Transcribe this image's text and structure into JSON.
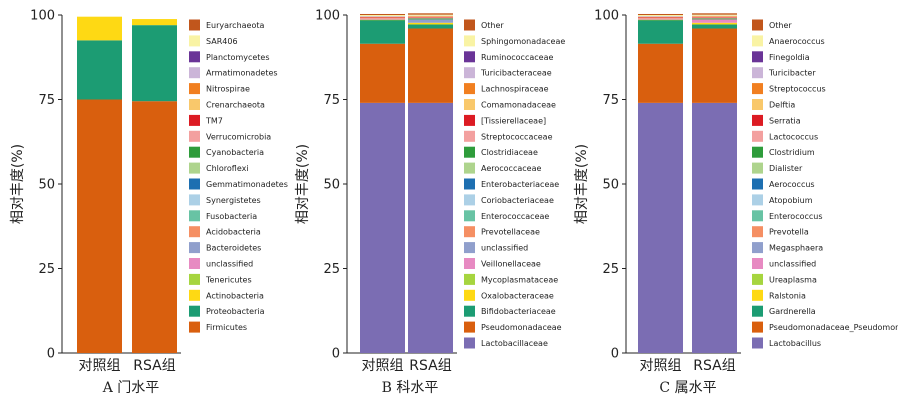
{
  "chart_data": [
    {
      "type": "bar",
      "stacked": true,
      "caption": "A 门水平",
      "ylabel": "相对丰度(%)",
      "ylim": [
        0,
        100
      ],
      "yticks": [
        0,
        25,
        50,
        75,
        100
      ],
      "categories": [
        "对照组",
        "RSA组"
      ],
      "legend_position": "right",
      "series": [
        {
          "name": "Euryarchaeota",
          "color": "#c1561c",
          "values": [
            0,
            0
          ]
        },
        {
          "name": "SAR406",
          "color": "#f9f3a4",
          "values": [
            0,
            0
          ]
        },
        {
          "name": "Planctomycetes",
          "color": "#6a3497",
          "values": [
            0,
            0
          ]
        },
        {
          "name": "Armatimonadetes",
          "color": "#cbb5d8",
          "values": [
            0,
            0
          ]
        },
        {
          "name": "Nitrospirae",
          "color": "#f17f20",
          "values": [
            0,
            0
          ]
        },
        {
          "name": "Crenarchaeota",
          "color": "#f9c86b",
          "values": [
            0,
            0
          ]
        },
        {
          "name": "TM7",
          "color": "#dc1b23",
          "values": [
            0,
            0
          ]
        },
        {
          "name": "Verrucomicrobia",
          "color": "#f3a09f",
          "values": [
            0,
            0
          ]
        },
        {
          "name": "Cyanobacteria",
          "color": "#2e9c3b",
          "values": [
            0,
            0
          ]
        },
        {
          "name": "Chloroflexi",
          "color": "#aed48d",
          "values": [
            0,
            0
          ]
        },
        {
          "name": "Gemmatimonadetes",
          "color": "#1d6fb1",
          "values": [
            0,
            0
          ]
        },
        {
          "name": "Synergistetes",
          "color": "#acd0e6",
          "values": [
            0,
            0
          ]
        },
        {
          "name": "Fusobacteria",
          "color": "#68c3a4",
          "values": [
            0,
            0
          ]
        },
        {
          "name": "Acidobacteria",
          "color": "#f58f63",
          "values": [
            0,
            0
          ]
        },
        {
          "name": "Bacteroidetes",
          "color": "#909fcc",
          "values": [
            0,
            0
          ]
        },
        {
          "name": "unclassified",
          "color": "#e78ac2",
          "values": [
            0,
            0
          ]
        },
        {
          "name": "Tenericutes",
          "color": "#a6d53f",
          "values": [
            0,
            0
          ]
        },
        {
          "name": "Actinobacteria",
          "color": "#fed914",
          "values": [
            7.0,
            1.8
          ]
        },
        {
          "name": "Proteobacteria",
          "color": "#1c9c73",
          "values": [
            17.5,
            22.5
          ]
        },
        {
          "name": "Firmicutes",
          "color": "#d95f0e",
          "values": [
            75.0,
            74.5
          ]
        }
      ]
    },
    {
      "type": "bar",
      "stacked": true,
      "caption": "B 科水平",
      "ylabel": "相对丰度(%)",
      "ylim": [
        0,
        100
      ],
      "yticks": [
        0,
        25,
        50,
        75,
        100
      ],
      "categories": [
        "对照组",
        "RSA组"
      ],
      "legend_position": "right",
      "series": [
        {
          "name": "Other",
          "color": "#c1561c",
          "values": [
            0.3,
            0.4
          ]
        },
        {
          "name": "Sphingomonadaceae",
          "color": "#f9f3a4",
          "values": [
            0.3,
            0.3
          ]
        },
        {
          "name": "Ruminococcaceae",
          "color": "#6a3497",
          "values": [
            0,
            0
          ]
        },
        {
          "name": "Turicibacteraceae",
          "color": "#cbb5d8",
          "values": [
            0.2,
            0.1
          ]
        },
        {
          "name": "Lachnospiraceae",
          "color": "#f17f20",
          "values": [
            0,
            0
          ]
        },
        {
          "name": "Comamonadaceae",
          "color": "#f9c86b",
          "values": [
            0.2,
            0.2
          ]
        },
        {
          "name": "[Tissierellaceae]",
          "color": "#dc1b23",
          "values": [
            0.2,
            0.2
          ]
        },
        {
          "name": "Streptococcaceae",
          "color": "#f3a09f",
          "values": [
            0.5,
            0.3
          ]
        },
        {
          "name": "Clostridiaceae",
          "color": "#2e9c3b",
          "values": [
            0.3,
            0.3
          ]
        },
        {
          "name": "Aerococcaceae",
          "color": "#aed48d",
          "values": [
            0,
            0
          ]
        },
        {
          "name": "Enterobacteriaceae",
          "color": "#1d6fb1",
          "values": [
            0,
            0
          ]
        },
        {
          "name": "Coriobacteriaceae",
          "color": "#acd0e6",
          "values": [
            0,
            0
          ]
        },
        {
          "name": "Enterococcaceae",
          "color": "#68c3a4",
          "values": [
            0,
            0
          ]
        },
        {
          "name": "Prevotellaceae",
          "color": "#f58f63",
          "values": [
            0,
            0
          ]
        },
        {
          "name": "unclassified",
          "color": "#909fcc",
          "values": [
            0,
            1.0
          ]
        },
        {
          "name": "Veillonellaceae",
          "color": "#e78ac2",
          "values": [
            0,
            0
          ]
        },
        {
          "name": "Mycoplasmataceae",
          "color": "#a6d53f",
          "values": [
            0,
            0
          ]
        },
        {
          "name": "Oxalobacteraceae",
          "color": "#fed914",
          "values": [
            0,
            0.5
          ]
        },
        {
          "name": "Bifidobacteriaceae",
          "color": "#1c9c73",
          "values": [
            6.8,
            1.2
          ]
        },
        {
          "name": "Pseudomonadaceae",
          "color": "#d95f0e",
          "values": [
            17.5,
            22.0
          ]
        },
        {
          "name": "Lactobacillaceae",
          "color": "#7b6db3",
          "values": [
            74.0,
            74.0
          ]
        }
      ]
    },
    {
      "type": "bar",
      "stacked": true,
      "caption": "C 属水平",
      "ylabel": "相对丰度(%)",
      "ylim": [
        0,
        100
      ],
      "yticks": [
        0,
        25,
        50,
        75,
        100
      ],
      "categories": [
        "对照组",
        "RSA组"
      ],
      "legend_position": "right",
      "series": [
        {
          "name": "Other",
          "color": "#c1561c",
          "values": [
            0.3,
            0.4
          ]
        },
        {
          "name": "Anaerococcus",
          "color": "#f9f3a4",
          "values": [
            0.3,
            0.3
          ]
        },
        {
          "name": "Finegoldia",
          "color": "#6a3497",
          "values": [
            0,
            0
          ]
        },
        {
          "name": "Turicibacter",
          "color": "#cbb5d8",
          "values": [
            0.2,
            0.1
          ]
        },
        {
          "name": "Streptococcus",
          "color": "#f17f20",
          "values": [
            0,
            0
          ]
        },
        {
          "name": "Delftia",
          "color": "#f9c86b",
          "values": [
            0.2,
            0.2
          ]
        },
        {
          "name": "Serratia",
          "color": "#dc1b23",
          "values": [
            0.2,
            0.2
          ]
        },
        {
          "name": "Lactococcus",
          "color": "#f3a09f",
          "values": [
            0.5,
            0.3
          ]
        },
        {
          "name": "Clostridium",
          "color": "#2e9c3b",
          "values": [
            0.3,
            0.3
          ]
        },
        {
          "name": "Dialister",
          "color": "#aed48d",
          "values": [
            0,
            0
          ]
        },
        {
          "name": "Aerococcus",
          "color": "#1d6fb1",
          "values": [
            0,
            0
          ]
        },
        {
          "name": "Atopobium",
          "color": "#acd0e6",
          "values": [
            0,
            0
          ]
        },
        {
          "name": "Enterococcus",
          "color": "#68c3a4",
          "values": [
            0,
            0
          ]
        },
        {
          "name": "Prevotella",
          "color": "#f58f63",
          "values": [
            0,
            0
          ]
        },
        {
          "name": "Megasphaera",
          "color": "#909fcc",
          "values": [
            0,
            0
          ]
        },
        {
          "name": "unclassified",
          "color": "#e78ac2",
          "values": [
            0,
            1.0
          ]
        },
        {
          "name": "Ureaplasma",
          "color": "#a6d53f",
          "values": [
            0,
            0
          ]
        },
        {
          "name": "Ralstonia",
          "color": "#fed914",
          "values": [
            0,
            0.5
          ]
        },
        {
          "name": "Gardnerella",
          "color": "#1c9c73",
          "values": [
            6.8,
            1.2
          ]
        },
        {
          "name": "Pseudomonadaceae_Pseudomonas",
          "color": "#d95f0e",
          "values": [
            17.5,
            22.0
          ]
        },
        {
          "name": "Lactobacillus",
          "color": "#7b6db3",
          "values": [
            74.0,
            74.0
          ]
        }
      ]
    }
  ]
}
